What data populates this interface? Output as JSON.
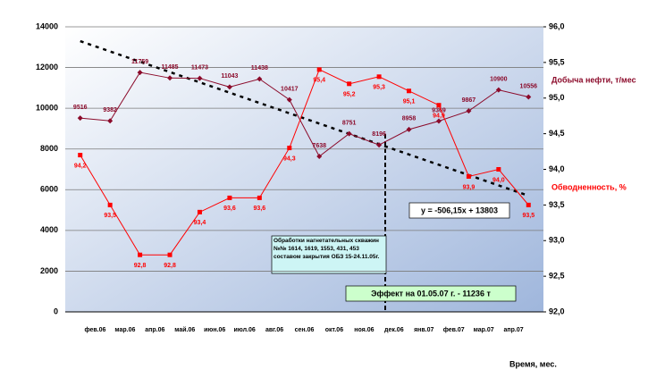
{
  "chart_data": {
    "type": "line",
    "categories": [
      "фев.06",
      "мар.06",
      "апр.06",
      "май.06",
      "июн.06",
      "июл.06",
      "авг.06",
      "сен.06",
      "окт.06",
      "ноя.06",
      "дек.06",
      "янв.07",
      "фев.07",
      "мар.07",
      "апр.07",
      null
    ],
    "series": [
      {
        "name": "Добыча нефти, т/мес",
        "color": "#8b0a2a",
        "values": [
          9516,
          9382,
          11759,
          11485,
          11473,
          11043,
          11438,
          10417,
          7638,
          8751,
          8196,
          8958,
          9369,
          9867,
          10900,
          10556
        ]
      },
      {
        "name": "Обводненность, %",
        "color": "#ff0000",
        "axis": "y2",
        "values": [
          94.2,
          93.5,
          92.8,
          92.8,
          93.4,
          93.6,
          93.6,
          94.3,
          95.4,
          95.2,
          95.3,
          95.1,
          94.9,
          93.9,
          94.0,
          93.5
        ],
        "value_labels": [
          "94,2",
          "93,5",
          "92,8",
          "92,8",
          "93,4",
          "93,6",
          "93,6",
          "94,3",
          "95,4",
          "95,2",
          "95,3",
          "95,1",
          "94,9",
          "93,9",
          "94,0",
          "93,5"
        ]
      }
    ],
    "trend": {
      "values": [
        13297,
        5705
      ],
      "label": "y = -506,15x + 13803"
    },
    "ylim": [
      0,
      14000
    ],
    "yticks": [
      0,
      2000,
      4000,
      6000,
      8000,
      10000,
      12000,
      14000
    ],
    "y2lim": [
      92,
      96
    ],
    "y2ticks": [
      {
        "value": 92,
        "label": "92,0"
      },
      {
        "value": 92.5,
        "label": "92,5"
      },
      {
        "value": 93,
        "label": "93,0"
      },
      {
        "value": 93.5,
        "label": "93,5"
      },
      {
        "value": 94,
        "label": "94,0"
      },
      {
        "value": 94.5,
        "label": "94,5"
      },
      {
        "value": 95,
        "label": "95,0"
      },
      {
        "value": 95.5,
        "label": "95,5"
      },
      {
        "value": 96,
        "label": "96,0"
      }
    ],
    "grid": true,
    "x_label": "Время, мес.",
    "annotations": [
      "Обработки нагнетательных скважин №№ 1614, 1619, 1553, 431, 453 составом закрытия ОБЗ 15-24.11.05г.",
      "Эффект на 01.05.07 г. -  11236 т"
    ]
  }
}
